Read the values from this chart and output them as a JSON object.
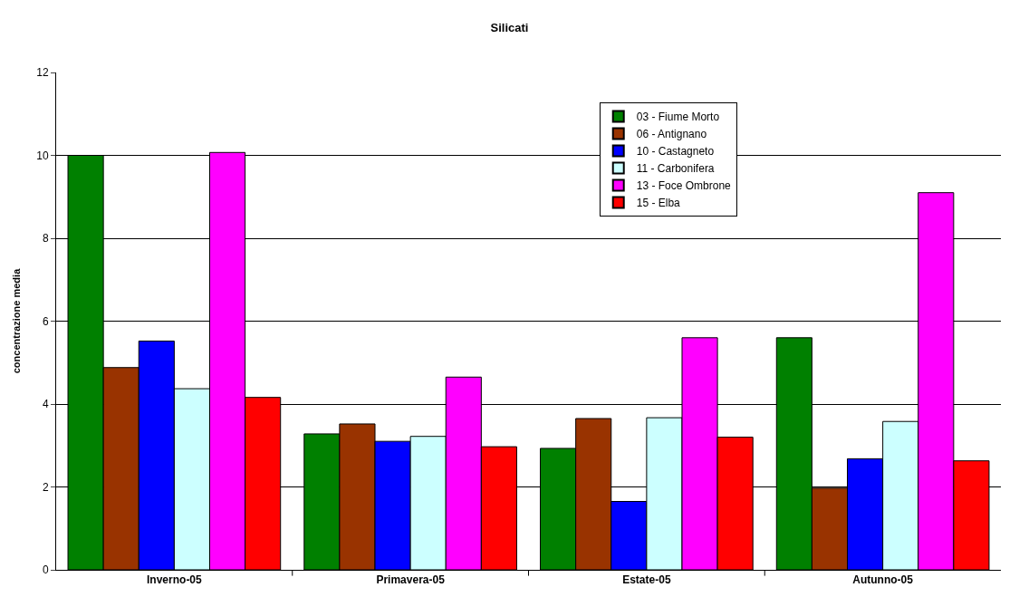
{
  "chart_data": {
    "type": "bar",
    "title": "Silicati",
    "ylabel": "concentrazione media",
    "categories": [
      "Inverno-05",
      "Primavera-05",
      "Estate-05",
      "Autunno-05"
    ],
    "series": [
      {
        "name": "03 - Fiume Morto",
        "color": "#008000",
        "values": [
          10.0,
          3.28,
          2.93,
          5.6
        ]
      },
      {
        "name": "06 - Antignano",
        "color": "#993300",
        "values": [
          4.88,
          3.52,
          3.65,
          1.97
        ]
      },
      {
        "name": "10 - Castagneto",
        "color": "#0000ff",
        "values": [
          5.52,
          3.1,
          1.65,
          2.68
        ]
      },
      {
        "name": "11 - Carbonifera",
        "color": "#ccffff",
        "values": [
          4.37,
          3.22,
          3.67,
          3.58
        ]
      },
      {
        "name": "13 - Foce Ombrone",
        "color": "#ff00ff",
        "values": [
          10.07,
          4.65,
          5.6,
          9.1
        ]
      },
      {
        "name": "15 - Elba",
        "color": "#ff0000",
        "values": [
          4.16,
          2.97,
          3.2,
          2.63
        ]
      }
    ],
    "ylim": [
      0,
      12
    ],
    "yticks": [
      0,
      2,
      4,
      6,
      8,
      10,
      12
    ],
    "grid": "y",
    "legend": "top right"
  }
}
